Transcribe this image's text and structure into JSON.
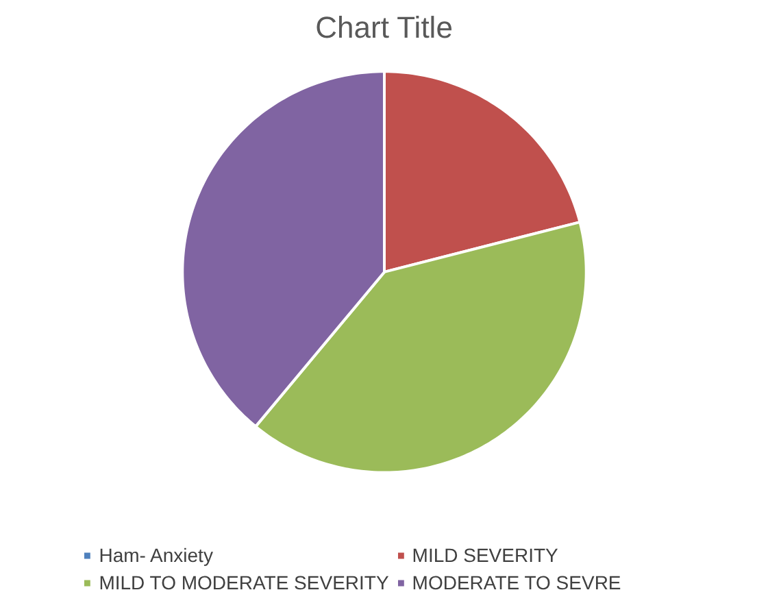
{
  "chart_data": {
    "type": "pie",
    "title": "Chart Title",
    "categories": [
      "Ham- Anxiety",
      "MILD SEVERITY",
      "MILD TO MODERATE SEVERITY",
      "MODERATE TO SEVRE"
    ],
    "values": [
      0,
      21,
      40,
      39
    ],
    "colors": [
      "#4f81bd",
      "#c0504d",
      "#9bbb59",
      "#8064a2"
    ],
    "legend": "bottom"
  }
}
